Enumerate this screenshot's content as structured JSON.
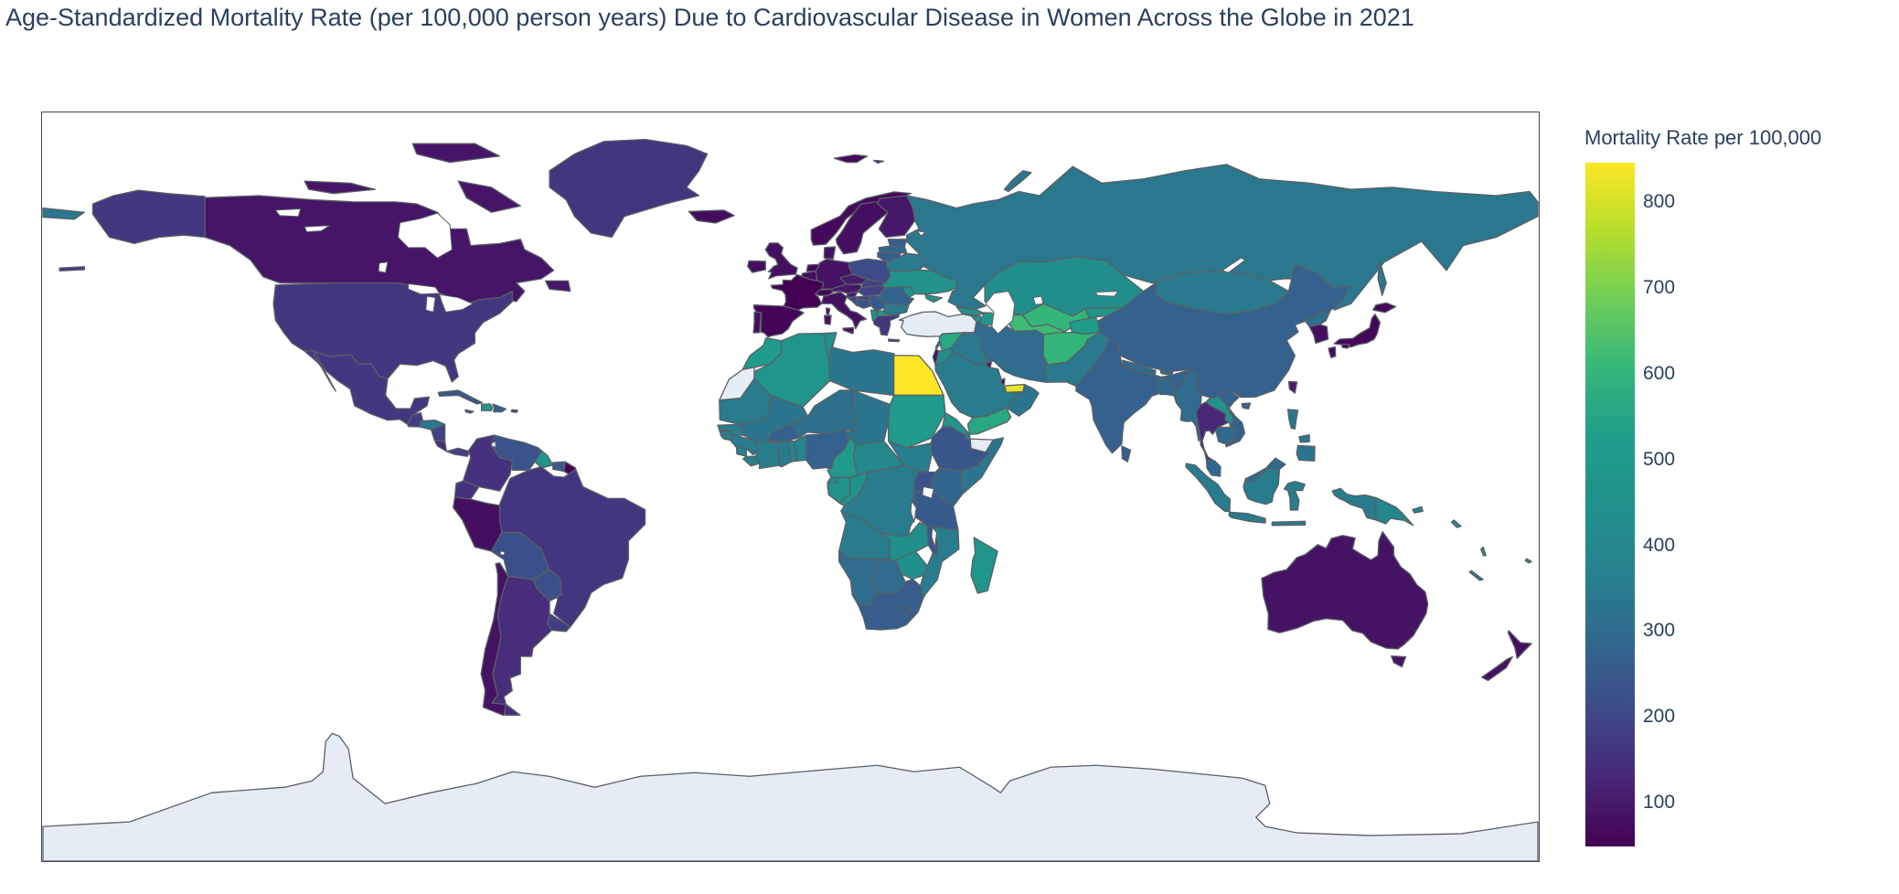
{
  "title": "Age-Standardized Mortality Rate (per 100,000 person years) Due to Cardiovascular Disease in Women Across the Globe in 2021",
  "colorbar": {
    "title": "Mortality Rate per 100,000",
    "ticks": [
      100,
      200,
      300,
      400,
      500,
      600,
      700,
      800
    ]
  },
  "chart_data": {
    "type": "choropleth",
    "projection": "equirectangular",
    "colorscale": "Viridis",
    "color_domain": [
      49,
      846
    ],
    "missing_color": "#E5ECF6",
    "title": "Age-Standardized Mortality Rate (per 100,000 person years) Due to Cardiovascular Disease in Women Across the Globe in 2021",
    "legend_title": "Mortality Rate per 100,000",
    "countries": [
      {
        "name": "Russia",
        "value": 335
      },
      {
        "name": "Canada",
        "value": 90
      },
      {
        "name": "United States",
        "value": 165
      },
      {
        "name": "Greenland",
        "value": 160
      },
      {
        "name": "Mexico",
        "value": 165
      },
      {
        "name": "Guatemala",
        "value": 175
      },
      {
        "name": "Honduras",
        "value": 330
      },
      {
        "name": "Nicaragua",
        "value": 190
      },
      {
        "name": "Costa Rica",
        "value": 140
      },
      {
        "name": "Panama",
        "value": 185
      },
      {
        "name": "Cuba",
        "value": 245
      },
      {
        "name": "Haiti",
        "value": 495
      },
      {
        "name": "Dominican Republic",
        "value": 255
      },
      {
        "name": "Jamaica",
        "value": 265
      },
      {
        "name": "Puerto Rico",
        "value": 165
      },
      {
        "name": "Colombia",
        "value": 150
      },
      {
        "name": "Venezuela",
        "value": 235
      },
      {
        "name": "Guyana",
        "value": 465
      },
      {
        "name": "Suriname",
        "value": 250
      },
      {
        "name": "French Guiana",
        "value": 49
      },
      {
        "name": "Ecuador",
        "value": 155
      },
      {
        "name": "Peru",
        "value": 75
      },
      {
        "name": "Brazil",
        "value": 160
      },
      {
        "name": "Bolivia",
        "value": 225
      },
      {
        "name": "Paraguay",
        "value": 225
      },
      {
        "name": "Uruguay",
        "value": 180
      },
      {
        "name": "Argentina",
        "value": 140
      },
      {
        "name": "Chile",
        "value": 85
      },
      {
        "name": "Iceland",
        "value": 72
      },
      {
        "name": "Ireland",
        "value": 75
      },
      {
        "name": "United Kingdom",
        "value": 78
      },
      {
        "name": "Norway",
        "value": 65
      },
      {
        "name": "Sweden",
        "value": 75
      },
      {
        "name": "Finland",
        "value": 95
      },
      {
        "name": "Denmark",
        "value": 80
      },
      {
        "name": "Estonia",
        "value": 255
      },
      {
        "name": "Latvia",
        "value": 280
      },
      {
        "name": "Lithuania",
        "value": 260
      },
      {
        "name": "Poland",
        "value": 215
      },
      {
        "name": "Germany",
        "value": 85
      },
      {
        "name": "Netherlands",
        "value": 62
      },
      {
        "name": "Belgium",
        "value": 70
      },
      {
        "name": "France",
        "value": 49
      },
      {
        "name": "Spain",
        "value": 56
      },
      {
        "name": "Portugal",
        "value": 75
      },
      {
        "name": "Italy",
        "value": 80
      },
      {
        "name": "Switzerland",
        "value": 55
      },
      {
        "name": "Austria",
        "value": 95
      },
      {
        "name": "Czechia",
        "value": 105
      },
      {
        "name": "Slovakia",
        "value": 185
      },
      {
        "name": "Hungary",
        "value": 190
      },
      {
        "name": "Slovenia",
        "value": 110
      },
      {
        "name": "Croatia",
        "value": 195
      },
      {
        "name": "Bosnia and Herzegovina",
        "value": 235
      },
      {
        "name": "Serbia",
        "value": 250
      },
      {
        "name": "Albania",
        "value": 480
      },
      {
        "name": "North Macedonia",
        "value": 470
      },
      {
        "name": "Greece",
        "value": 160
      },
      {
        "name": "Bulgaria",
        "value": 340
      },
      {
        "name": "Romania",
        "value": 275
      },
      {
        "name": "Moldova",
        "value": 450
      },
      {
        "name": "Ukraine",
        "value": 460
      },
      {
        "name": "Belarus",
        "value": 350
      },
      {
        "name": "Morocco",
        "value": 510
      },
      {
        "name": "Western Sahara",
        "value": null
      },
      {
        "name": "Algeria",
        "value": 470
      },
      {
        "name": "Tunisia",
        "value": 450
      },
      {
        "name": "Libya",
        "value": 330
      },
      {
        "name": "Egypt",
        "value": 846
      },
      {
        "name": "Mauritania",
        "value": 350
      },
      {
        "name": "Mali",
        "value": 330
      },
      {
        "name": "Senegal",
        "value": 360
      },
      {
        "name": "Gambia",
        "value": 360
      },
      {
        "name": "Guinea-Bissau",
        "value": 380
      },
      {
        "name": "Guinea",
        "value": 350
      },
      {
        "name": "Sierra Leone",
        "value": 380
      },
      {
        "name": "Liberia",
        "value": 360
      },
      {
        "name": "Ivory Coast",
        "value": 360
      },
      {
        "name": "Burkina Faso",
        "value": 270
      },
      {
        "name": "Ghana",
        "value": 350
      },
      {
        "name": "Togo",
        "value": 380
      },
      {
        "name": "Benin",
        "value": 380
      },
      {
        "name": "Niger",
        "value": 310
      },
      {
        "name": "Nigeria",
        "value": 270
      },
      {
        "name": "Chad",
        "value": 330
      },
      {
        "name": "Cameroon",
        "value": 500
      },
      {
        "name": "Central African Republic",
        "value": 400
      },
      {
        "name": "Sudan",
        "value": 500
      },
      {
        "name": "South Sudan",
        "value": 355
      },
      {
        "name": "Eritrea",
        "value": 480
      },
      {
        "name": "Ethiopia",
        "value": 240
      },
      {
        "name": "Djibouti",
        "value": 430
      },
      {
        "name": "Somaliland",
        "value": null
      },
      {
        "name": "Somalia",
        "value": 330
      },
      {
        "name": "Kenya",
        "value": 280
      },
      {
        "name": "Uganda",
        "value": 235
      },
      {
        "name": "Rwanda",
        "value": 245
      },
      {
        "name": "Burundi",
        "value": 255
      },
      {
        "name": "Tanzania",
        "value": 250
      },
      {
        "name": "Democratic Republic of the Congo",
        "value": 345
      },
      {
        "name": "Republic of the Congo",
        "value": 450
      },
      {
        "name": "Gabon",
        "value": 460
      },
      {
        "name": "Equatorial Guinea",
        "value": 430
      },
      {
        "name": "Angola",
        "value": 345
      },
      {
        "name": "Zambia",
        "value": 440
      },
      {
        "name": "Malawi",
        "value": 240
      },
      {
        "name": "Mozambique",
        "value": 350
      },
      {
        "name": "Zimbabwe",
        "value": 440
      },
      {
        "name": "Botswana",
        "value": 300
      },
      {
        "name": "Namibia",
        "value": 300
      },
      {
        "name": "South Africa",
        "value": 260
      },
      {
        "name": "Lesotho",
        "value": 255
      },
      {
        "name": "Madagascar",
        "value": 480
      },
      {
        "name": "Turkey",
        "value": null
      },
      {
        "name": "Syria",
        "value": 560
      },
      {
        "name": "Lebanon",
        "value": 300
      },
      {
        "name": "Israel",
        "value": 85
      },
      {
        "name": "Jordan",
        "value": 430
      },
      {
        "name": "Iraq",
        "value": 340
      },
      {
        "name": "Saudi Arabia",
        "value": 350
      },
      {
        "name": "Kuwait",
        "value": 95
      },
      {
        "name": "Qatar",
        "value": 70
      },
      {
        "name": "United Arab Emirates",
        "value": 820
      },
      {
        "name": "Oman",
        "value": 330
      },
      {
        "name": "Yemen",
        "value": 560
      },
      {
        "name": "Iran",
        "value": 300
      },
      {
        "name": "Georgia",
        "value": 450
      },
      {
        "name": "Armenia",
        "value": 470
      },
      {
        "name": "Azerbaijan",
        "value": 480
      },
      {
        "name": "Kazakhstan",
        "value": 430
      },
      {
        "name": "Uzbekistan",
        "value": 600
      },
      {
        "name": "Turkmenistan",
        "value": 620
      },
      {
        "name": "Kyrgyzstan",
        "value": 480
      },
      {
        "name": "Tajikistan",
        "value": 520
      },
      {
        "name": "Afghanistan",
        "value": 600
      },
      {
        "name": "Pakistan",
        "value": 340
      },
      {
        "name": "India",
        "value": 270
      },
      {
        "name": "Nepal",
        "value": 300
      },
      {
        "name": "Bhutan",
        "value": 300
      },
      {
        "name": "Bangladesh",
        "value": 290
      },
      {
        "name": "Sri Lanka",
        "value": 270
      },
      {
        "name": "Myanmar",
        "value": 300
      },
      {
        "name": "Thailand",
        "value": 130
      },
      {
        "name": "Laos",
        "value": 460
      },
      {
        "name": "Vietnam",
        "value": 270
      },
      {
        "name": "Cambodia",
        "value": 290
      },
      {
        "name": "Malaysia",
        "value": 290
      },
      {
        "name": "Indonesia",
        "value": 350
      },
      {
        "name": "Philippines",
        "value": 330
      },
      {
        "name": "Papua New Guinea",
        "value": 390
      },
      {
        "name": "China",
        "value": 270
      },
      {
        "name": "Mongolia",
        "value": 340
      },
      {
        "name": "North Korea",
        "value": 300
      },
      {
        "name": "South Korea",
        "value": 75
      },
      {
        "name": "Japan",
        "value": 62
      },
      {
        "name": "Taiwan",
        "value": 95
      },
      {
        "name": "Australia",
        "value": 85
      },
      {
        "name": "New Zealand",
        "value": 80
      },
      {
        "name": "Solomon Islands",
        "value": 400
      },
      {
        "name": "Vanuatu",
        "value": 420
      },
      {
        "name": "New Caledonia",
        "value": 350
      },
      {
        "name": "Fiji",
        "value": 430
      },
      {
        "name": "Antarctica",
        "value": null
      }
    ]
  }
}
